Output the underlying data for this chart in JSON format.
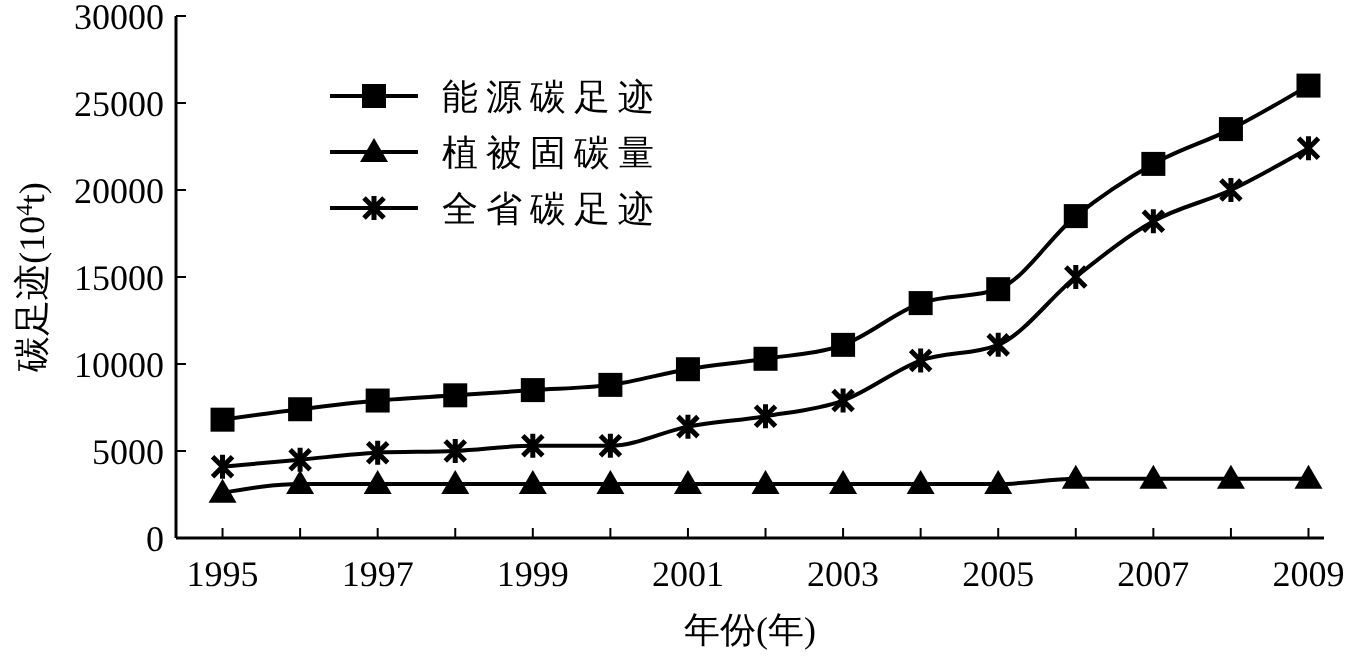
{
  "chart_data": {
    "type": "line",
    "xlabel": "年份(年)",
    "ylabel": "碳足迹(10$^{4}$t)",
    "x": [
      1995,
      1996,
      1997,
      1998,
      1999,
      2000,
      2001,
      2002,
      2003,
      2004,
      2005,
      2006,
      2007,
      2008,
      2009
    ],
    "xlim": [
      1994.4,
      2009.2
    ],
    "xticks": [
      1995,
      {
        "value": 1996,
        "label": null
      },
      1997,
      {
        "value": 1998,
        "label": null
      },
      1999,
      {
        "value": 2000,
        "label": null
      },
      2001,
      {
        "value": 2002,
        "label": null
      },
      2003,
      {
        "value": 2004,
        "label": null
      },
      2005,
      {
        "value": 2006,
        "label": null
      },
      2007,
      {
        "value": 2008,
        "label": null
      },
      2009
    ],
    "ylim": [
      0,
      30000
    ],
    "yticks": [
      0,
      5000,
      10000,
      15000,
      20000,
      25000,
      30000
    ],
    "grid": false,
    "legend": "top left",
    "series": [
      {
        "name": "能源碳足迹",
        "color": "#000000",
        "marker": "square",
        "values": [
          6800,
          7400,
          7900,
          8200,
          8500,
          8800,
          9700,
          10300,
          11100,
          13500,
          14300,
          18500,
          21500,
          23500,
          26000
        ]
      },
      {
        "name": "植被固碳量",
        "color": "#000000",
        "marker": "triangle",
        "values": [
          2600,
          3100,
          3100,
          3100,
          3100,
          3100,
          3100,
          3100,
          3100,
          3100,
          3100,
          3400,
          3400,
          3400,
          3400
        ]
      },
      {
        "name": "全省碳足迹",
        "color": "#000000",
        "marker": "cross",
        "values": [
          4100,
          4500,
          4900,
          5000,
          5300,
          5300,
          6400,
          7000,
          7900,
          10200,
          11100,
          15000,
          18200,
          20000,
          22400
        ]
      }
    ]
  }
}
